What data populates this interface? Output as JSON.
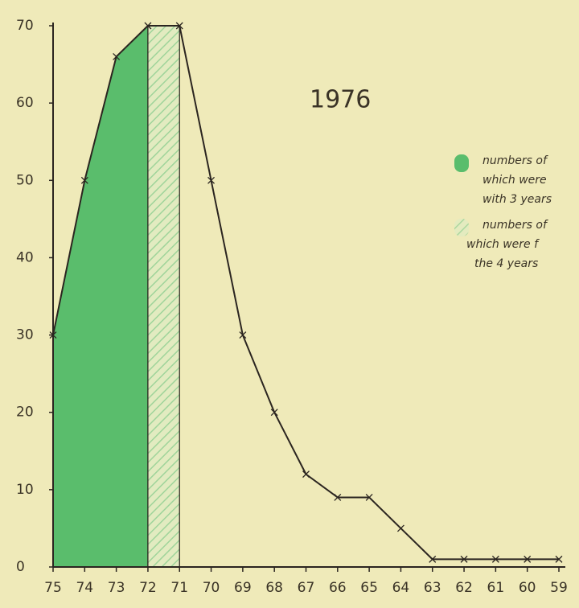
{
  "chart_data": {
    "type": "line",
    "title": "1976",
    "categories": [
      "75",
      "74",
      "73",
      "72",
      "71",
      "70",
      "69",
      "68",
      "67",
      "66",
      "65",
      "64",
      "63",
      "62",
      "61",
      "60",
      "59"
    ],
    "ylim": [
      0,
      70
    ],
    "yticks": [
      0,
      10,
      20,
      30,
      40,
      50,
      60,
      70
    ],
    "series": [
      {
        "name": "",
        "color": "#2b2520",
        "kind": "line",
        "values": [
          30,
          50,
          66,
          70,
          70,
          50,
          30,
          20,
          12,
          9,
          9,
          5,
          1,
          1,
          1,
          1,
          1
        ]
      },
      {
        "name": [
          "numbers of",
          "which were",
          "with 3 years"
        ],
        "color": "#3fb55e",
        "kind": "area",
        "values": [
          30,
          50,
          66,
          70,
          null,
          null,
          null,
          null,
          null,
          null,
          null,
          null,
          null,
          null,
          null,
          null,
          null
        ]
      },
      {
        "name": [
          "numbers of",
          "which were f",
          "the 4 years"
        ],
        "color": "#8fcf8f",
        "kind": "hatch",
        "values": [
          null,
          null,
          null,
          70,
          70,
          null,
          null,
          null,
          null,
          null,
          null,
          null,
          null,
          null,
          null,
          null,
          null
        ]
      }
    ]
  }
}
